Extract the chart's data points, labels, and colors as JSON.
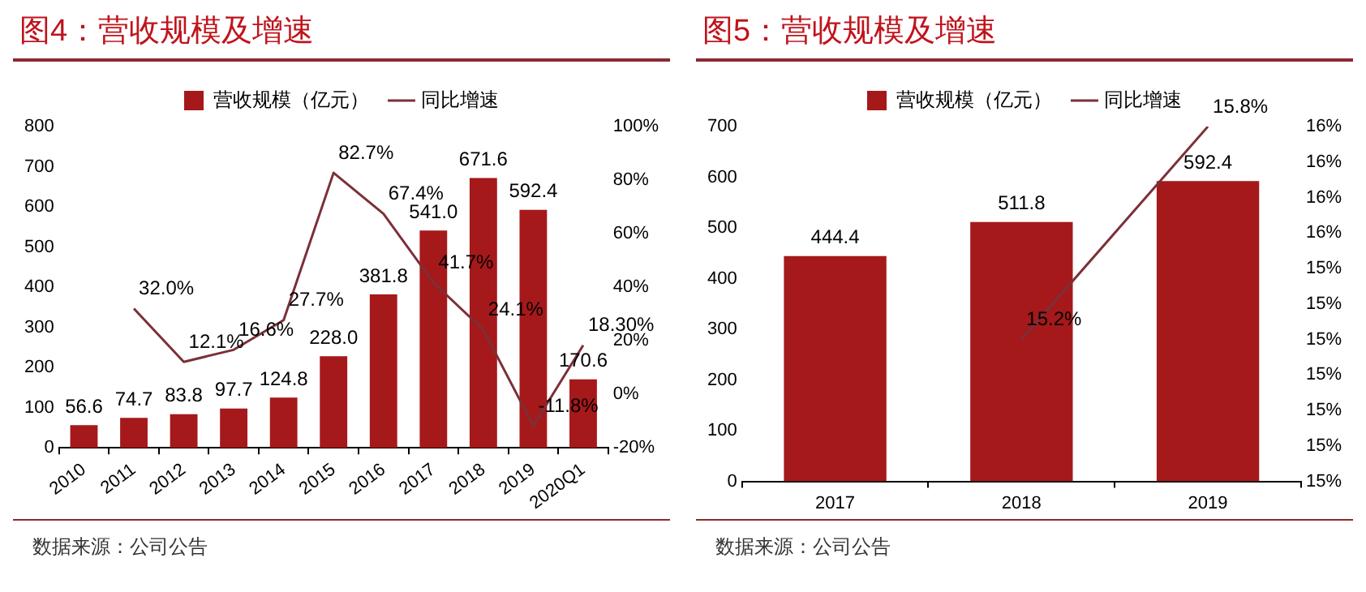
{
  "chart_data": [
    {
      "type": "bar",
      "title": "图4：营收规模及增速",
      "categories": [
        "2010",
        "2011",
        "2012",
        "2013",
        "2014",
        "2015",
        "2016",
        "2017",
        "2018",
        "2019",
        "2020Q1"
      ],
      "series": [
        {
          "name": "营收规模（亿元）",
          "color": "#a5191b",
          "values": [
            56.6,
            74.7,
            83.8,
            97.7,
            124.8,
            228.0,
            381.8,
            541.0,
            671.6,
            592.4,
            170.6
          ],
          "value_labels": [
            "56.6",
            "74.7",
            "83.8",
            "97.7",
            "124.8",
            "228.0",
            "381.8",
            "541.0",
            "671.6",
            "592.4",
            "170.6"
          ]
        },
        {
          "name": "同比增速",
          "type": "line",
          "axis": "y2",
          "color": "#7b3038",
          "values": [
            null,
            32.0,
            12.1,
            16.6,
            27.7,
            82.7,
            67.4,
            41.7,
            24.1,
            -11.8,
            18.3
          ],
          "value_labels": [
            null,
            "32.0%",
            "12.1%",
            "16.6%",
            "27.7%",
            "82.7%",
            "67.4%",
            "41.7%",
            "24.1%",
            "-11.8%",
            "18.30%"
          ]
        }
      ],
      "ylim": [
        0,
        800
      ],
      "yticks": [
        0,
        100,
        200,
        300,
        400,
        500,
        600,
        700,
        800
      ],
      "y2lim": [
        -20,
        100
      ],
      "y2ticks": [
        {
          "value": -20,
          "label": "-20%"
        },
        {
          "value": 0,
          "label": "0%"
        },
        {
          "value": 20,
          "label": "20%"
        },
        {
          "value": 40,
          "label": "40%"
        },
        {
          "value": 60,
          "label": "60%"
        },
        {
          "value": 80,
          "label": "80%"
        },
        {
          "value": 100,
          "label": "100%"
        }
      ],
      "legend": "top",
      "annotations": [
        "数据来源：公司公告"
      ]
    },
    {
      "type": "bar",
      "title": "图5：营收规模及增速",
      "categories": [
        "2017",
        "2018",
        "2019"
      ],
      "series": [
        {
          "name": "营收规模（亿元）",
          "color": "#a5191b",
          "values": [
            444.4,
            511.8,
            592.4
          ],
          "value_labels": [
            "444.4",
            "511.8",
            "592.4"
          ]
        },
        {
          "name": "同比增速",
          "type": "line",
          "axis": "y2",
          "color": "#7b3038",
          "values": [
            null,
            15.2,
            15.8
          ],
          "value_labels": [
            null,
            "15.2%",
            "15.8%"
          ]
        }
      ],
      "ylim": [
        0,
        700
      ],
      "yticks": [
        0,
        100,
        200,
        300,
        400,
        500,
        600,
        700
      ],
      "y2lim": [
        14.8,
        15.8
      ],
      "y2ticks": [
        {
          "value": 14.8,
          "label": "15%"
        },
        {
          "value": 14.9,
          "label": "15%"
        },
        {
          "value": 15.0,
          "label": "15%"
        },
        {
          "value": 15.1,
          "label": "15%"
        },
        {
          "value": 15.2,
          "label": "15%"
        },
        {
          "value": 15.3,
          "label": "15%"
        },
        {
          "value": 15.4,
          "label": "15%"
        },
        {
          "value": 15.5,
          "label": "16%"
        },
        {
          "value": 15.6,
          "label": "16%"
        },
        {
          "value": 15.7,
          "label": "16%"
        },
        {
          "value": 15.8,
          "label": "16%"
        }
      ],
      "legend": "top",
      "annotations": [
        "数据来源：公司公告"
      ]
    }
  ]
}
